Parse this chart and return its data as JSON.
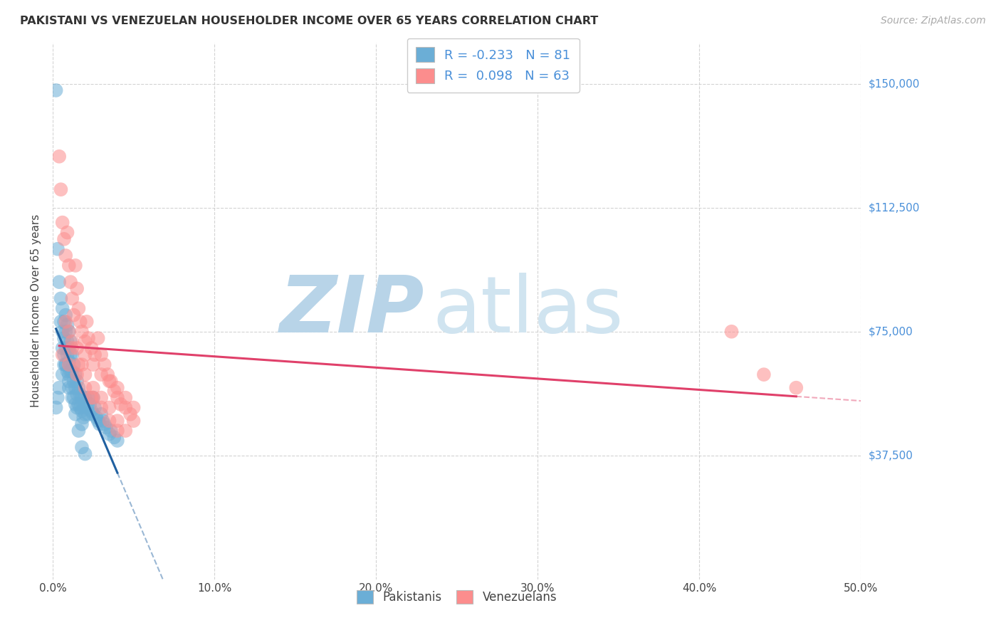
{
  "title": "PAKISTANI VS VENEZUELAN HOUSEHOLDER INCOME OVER 65 YEARS CORRELATION CHART",
  "source": "Source: ZipAtlas.com",
  "ylabel": "Householder Income Over 65 years",
  "xlim": [
    0.0,
    0.5
  ],
  "ylim": [
    0,
    162500
  ],
  "yticks": [
    37500,
    75000,
    112500,
    150000
  ],
  "ytick_labels": [
    "$37,500",
    "$75,000",
    "$112,500",
    "$150,000"
  ],
  "xticks": [
    0.0,
    0.1,
    0.2,
    0.3,
    0.4,
    0.5
  ],
  "xtick_labels": [
    "0.0%",
    "10.0%",
    "20.0%",
    "30.0%",
    "40.0%",
    "50.0%"
  ],
  "pakistani_color": "#6baed6",
  "venezuelan_color": "#fc8d8d",
  "pakistani_line_color": "#2060a0",
  "venezuelan_line_color": "#e0406a",
  "pakistani_R": -0.233,
  "pakistani_N": 81,
  "venezuelan_R": 0.098,
  "venezuelan_N": 63,
  "background_color": "#ffffff",
  "grid_color": "#c8c8c8",
  "watermark_zip": "ZIP",
  "watermark_atlas": "atlas",
  "watermark_color": "#c8dff0",
  "legend_label_1": "Pakistanis",
  "legend_label_2": "Venezuelans",
  "pakistani_x": [
    0.002,
    0.003,
    0.004,
    0.005,
    0.005,
    0.006,
    0.006,
    0.006,
    0.007,
    0.007,
    0.007,
    0.007,
    0.008,
    0.008,
    0.008,
    0.008,
    0.009,
    0.009,
    0.009,
    0.009,
    0.01,
    0.01,
    0.01,
    0.01,
    0.01,
    0.011,
    0.011,
    0.011,
    0.012,
    0.012,
    0.012,
    0.013,
    0.013,
    0.013,
    0.014,
    0.014,
    0.014,
    0.015,
    0.015,
    0.015,
    0.016,
    0.016,
    0.017,
    0.017,
    0.018,
    0.018,
    0.018,
    0.019,
    0.019,
    0.02,
    0.02,
    0.021,
    0.022,
    0.022,
    0.023,
    0.024,
    0.025,
    0.025,
    0.026,
    0.027,
    0.028,
    0.029,
    0.03,
    0.031,
    0.032,
    0.033,
    0.035,
    0.036,
    0.038,
    0.04,
    0.002,
    0.003,
    0.004,
    0.006,
    0.008,
    0.01,
    0.012,
    0.014,
    0.016,
    0.018,
    0.02
  ],
  "pakistani_y": [
    148000,
    100000,
    90000,
    85000,
    78000,
    82000,
    75000,
    70000,
    78000,
    73000,
    68000,
    65000,
    80000,
    75000,
    70000,
    65000,
    77000,
    72000,
    68000,
    63000,
    75000,
    70000,
    66000,
    62000,
    58000,
    72000,
    68000,
    63000,
    68000,
    63000,
    58000,
    65000,
    60000,
    55000,
    62000,
    58000,
    53000,
    60000,
    56000,
    52000,
    58000,
    53000,
    56000,
    52000,
    55000,
    51000,
    47000,
    53000,
    49000,
    55000,
    50000,
    52000,
    55000,
    50000,
    53000,
    51000,
    55000,
    50000,
    52000,
    49000,
    48000,
    47000,
    50000,
    48000,
    47000,
    46000,
    44000,
    45000,
    43000,
    42000,
    52000,
    55000,
    58000,
    62000,
    65000,
    60000,
    55000,
    50000,
    45000,
    40000,
    38000
  ],
  "venezuelan_x": [
    0.004,
    0.005,
    0.006,
    0.007,
    0.008,
    0.009,
    0.01,
    0.011,
    0.012,
    0.013,
    0.014,
    0.015,
    0.016,
    0.017,
    0.018,
    0.02,
    0.021,
    0.022,
    0.024,
    0.026,
    0.028,
    0.03,
    0.032,
    0.034,
    0.036,
    0.038,
    0.04,
    0.042,
    0.045,
    0.048,
    0.05,
    0.01,
    0.015,
    0.02,
    0.025,
    0.03,
    0.035,
    0.04,
    0.045,
    0.05,
    0.008,
    0.012,
    0.016,
    0.02,
    0.025,
    0.03,
    0.035,
    0.04,
    0.045,
    0.42,
    0.44,
    0.46,
    0.006,
    0.01,
    0.015,
    0.02,
    0.025,
    0.03,
    0.035,
    0.04,
    0.012,
    0.018,
    0.024
  ],
  "venezuelan_y": [
    128000,
    118000,
    108000,
    103000,
    98000,
    105000,
    95000,
    90000,
    85000,
    80000,
    95000,
    88000,
    82000,
    78000,
    75000,
    72000,
    78000,
    73000,
    70000,
    68000,
    73000,
    68000,
    65000,
    62000,
    60000,
    57000,
    55000,
    53000,
    52000,
    50000,
    48000,
    75000,
    70000,
    68000,
    65000,
    62000,
    60000,
    58000,
    55000,
    52000,
    78000,
    72000,
    65000,
    62000,
    58000,
    55000,
    52000,
    48000,
    45000,
    75000,
    62000,
    58000,
    68000,
    65000,
    62000,
    58000,
    55000,
    52000,
    48000,
    45000,
    70000,
    65000,
    55000
  ]
}
